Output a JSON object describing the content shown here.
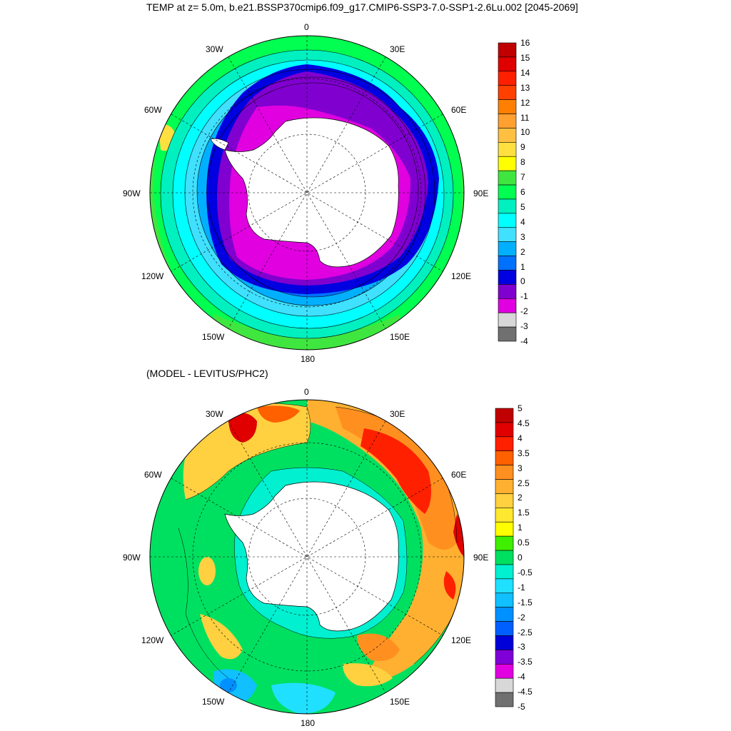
{
  "top_panel": {
    "title": "TEMP at z=   5.0m, b.e21.BSSP370cmip6.f09_g17.CMIP6-SSP3-7.0-SSP1-2.6Lu.002 [2045-2069]",
    "lon_labels": [
      "0",
      "30E",
      "60E",
      "90E",
      "120E",
      "150E",
      "180",
      "150W",
      "120W",
      "90W",
      "60W",
      "30W"
    ],
    "colorbar": {
      "labels": [
        "16",
        "15",
        "14",
        "13",
        "12",
        "11",
        "10",
        "9",
        "8",
        "7",
        "6",
        "5",
        "4",
        "3",
        "2",
        "1",
        "0",
        "-1",
        "-2",
        "-3",
        "-4"
      ],
      "colors": [
        "#c00000",
        "#e00000",
        "#ff2000",
        "#ff4000",
        "#ff8000",
        "#ffa030",
        "#ffbf40",
        "#ffe040",
        "#ffff00",
        "#40e640",
        "#00ff50",
        "#00f0c0",
        "#00ffff",
        "#40e0ff",
        "#00b0ff",
        "#0070ff",
        "#0000e0",
        "#8000d0",
        "#e000e0",
        "#d8d8d8",
        "#707070"
      ]
    }
  },
  "bottom_panel": {
    "title": "(MODEL - LEVITUS/PHC2)",
    "lon_labels": [
      "0",
      "30E",
      "60E",
      "90E",
      "120E",
      "150E",
      "180",
      "150W",
      "120W",
      "90W",
      "60W",
      "30W"
    ],
    "colorbar": {
      "labels": [
        "5",
        "4.5",
        "4",
        "3.5",
        "3",
        "2.5",
        "2",
        "1.5",
        "1",
        "0.5",
        "0",
        "-0.5",
        "-1",
        "-1.5",
        "-2",
        "-2.5",
        "-3",
        "-3.5",
        "-4",
        "-4.5",
        "-5"
      ],
      "colors": [
        "#c00000",
        "#e00000",
        "#ff2000",
        "#ff6000",
        "#ff9020",
        "#ffb030",
        "#ffd040",
        "#ffe830",
        "#ffff00",
        "#40ee00",
        "#00e060",
        "#00f0d0",
        "#20e0ff",
        "#10c0ff",
        "#0090ff",
        "#0060ff",
        "#0000d8",
        "#8000d8",
        "#e000e0",
        "#d8d8d8",
        "#707070"
      ]
    }
  },
  "colors": {
    "land": "#ffffff",
    "outline": "#000000"
  }
}
